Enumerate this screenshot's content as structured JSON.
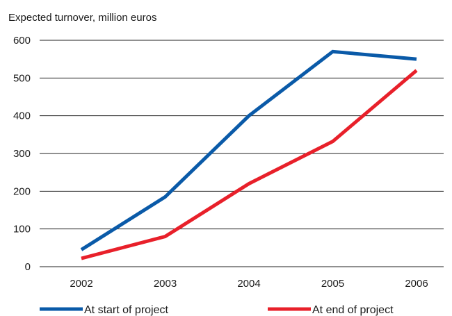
{
  "chart_data": {
    "type": "line",
    "ylabel": "Expected turnover, million euros",
    "categories": [
      "2002",
      "2003",
      "2004",
      "2005",
      "2006"
    ],
    "ylim": [
      0,
      600
    ],
    "yticks": [
      0,
      100,
      200,
      300,
      400,
      500,
      600
    ],
    "grid": true,
    "legend_position": "bottom",
    "series": [
      {
        "name": "At start of project",
        "color": "#0a5aa8",
        "values": [
          45,
          185,
          400,
          570,
          550
        ]
      },
      {
        "name": "At end of project",
        "color": "#e8202a",
        "values": [
          22,
          80,
          220,
          332,
          520
        ]
      }
    ]
  }
}
